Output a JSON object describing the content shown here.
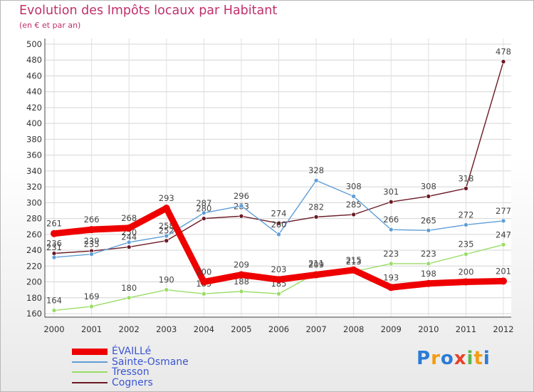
{
  "chart_data": {
    "type": "line",
    "title": "Evolution des Impôts locaux par Habitant",
    "subtitle": "(en € et par an)",
    "x": [
      "2000",
      "2001",
      "2002",
      "2003",
      "2004",
      "2005",
      "2006",
      "2007",
      "2008",
      "2009",
      "2010",
      "2011",
      "2012"
    ],
    "ylim": [
      160,
      500
    ],
    "yticks": [
      160,
      180,
      200,
      220,
      240,
      260,
      280,
      300,
      320,
      340,
      360,
      380,
      400,
      420,
      440,
      460,
      480,
      500
    ],
    "series": [
      {
        "name": "Cogners",
        "color": "#6b1a25",
        "values": [
          236,
          239,
          244,
          252,
          280,
          283,
          274,
          282,
          285,
          301,
          308,
          318,
          478
        ]
      },
      {
        "name": "Tresson",
        "color": "#99dd66",
        "values": [
          164,
          169,
          180,
          190,
          185,
          188,
          185,
          211,
          213,
          223,
          223,
          235,
          247
        ]
      },
      {
        "name": "Sainte-Osmane",
        "color": "#5f9ed6",
        "values": [
          231,
          235,
          250,
          258,
          287,
          296,
          260,
          328,
          308,
          266,
          265,
          272,
          277
        ]
      },
      {
        "name": "ÉVAILLé",
        "color": "#ee0000",
        "values": [
          261,
          266,
          268,
          293,
          200,
          209,
          203,
          209,
          215,
          193,
          198,
          200,
          201
        ]
      }
    ]
  },
  "legend": {
    "items": [
      "ÉVAILLé",
      "Sainte-Osmane",
      "Tresson",
      "Cogners"
    ]
  },
  "brand": {
    "letters": [
      "P",
      "r",
      "o",
      "x",
      "i",
      "t",
      "i"
    ],
    "colors": [
      "#2b7bd6",
      "#f39c12",
      "#2b7bd6",
      "#e8412c",
      "#59b84b",
      "#f39c12",
      "#2b7bd6"
    ]
  }
}
